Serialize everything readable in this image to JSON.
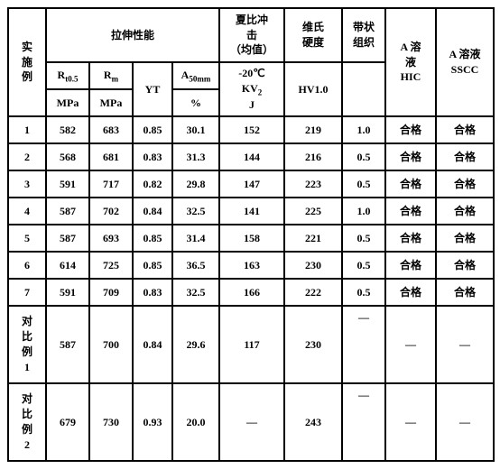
{
  "header": {
    "col0": "实\n施\n例",
    "tensile_group": "拉伸性能",
    "charpy_top": "夏比冲\n击\n（均值）",
    "vickers_top": "维氏\n硬度",
    "band_top": "带状\n组织",
    "a_hic": "A 溶\n液\nHIC",
    "a_sscc": "A 溶液\nSSCC",
    "rt05_top": "R<sub>t0.5</sub>",
    "rt05_bot": "MPa",
    "rm_top": "R<sub>m</sub>",
    "rm_bot": "MPa",
    "yt": "YT",
    "a50_top": "A<sub>50mm</sub>",
    "a50_bot": "%",
    "charpy_bot": "-20℃\nKV<sub>2</sub>\nJ",
    "vickers_bot": "HV1.0"
  },
  "rows": [
    {
      "label": "1",
      "rt": "582",
      "rm": "683",
      "yt": "0.85",
      "a50": "30.1",
      "kv": "152",
      "hv": "219",
      "band": "1.0",
      "hic": "合格",
      "sscc": "合格"
    },
    {
      "label": "2",
      "rt": "568",
      "rm": "681",
      "yt": "0.83",
      "a50": "31.3",
      "kv": "144",
      "hv": "216",
      "band": "0.5",
      "hic": "合格",
      "sscc": "合格"
    },
    {
      "label": "3",
      "rt": "591",
      "rm": "717",
      "yt": "0.82",
      "a50": "29.8",
      "kv": "147",
      "hv": "223",
      "band": "0.5",
      "hic": "合格",
      "sscc": "合格"
    },
    {
      "label": "4",
      "rt": "587",
      "rm": "702",
      "yt": "0.84",
      "a50": "32.5",
      "kv": "141",
      "hv": "225",
      "band": "1.0",
      "hic": "合格",
      "sscc": "合格"
    },
    {
      "label": "5",
      "rt": "587",
      "rm": "693",
      "yt": "0.85",
      "a50": "31.4",
      "kv": "158",
      "hv": "221",
      "band": "0.5",
      "hic": "合格",
      "sscc": "合格"
    },
    {
      "label": "6",
      "rt": "614",
      "rm": "725",
      "yt": "0.85",
      "a50": "36.5",
      "kv": "163",
      "hv": "230",
      "band": "0.5",
      "hic": "合格",
      "sscc": "合格"
    },
    {
      "label": "7",
      "rt": "591",
      "rm": "709",
      "yt": "0.83",
      "a50": "32.5",
      "kv": "166",
      "hv": "222",
      "band": "0.5",
      "hic": "合格",
      "sscc": "合格"
    }
  ],
  "comp1": {
    "label": "对\n比\n例\n1",
    "rt": "587",
    "rm": "700",
    "yt": "0.84",
    "a50": "29.6",
    "kv": "117",
    "hv": "230",
    "band": "—",
    "hic": "—",
    "sscc": "—"
  },
  "comp2": {
    "label": "对\n比\n例\n2",
    "rt": "679",
    "rm": "730",
    "yt": "0.93",
    "a50": "20.0",
    "kv": "—",
    "hv": "243",
    "band": "—",
    "hic": "—",
    "sscc": "—"
  }
}
